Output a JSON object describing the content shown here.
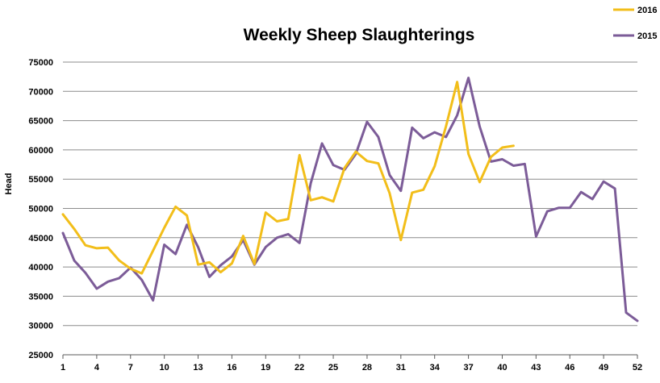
{
  "chart_data": {
    "type": "line",
    "title": "Weekly Sheep Slaughterings",
    "ylabel": "Head",
    "xlabel": "",
    "xlim": [
      1,
      52
    ],
    "ylim": [
      25000,
      75000
    ],
    "y_ticks": [
      25000,
      30000,
      35000,
      40000,
      45000,
      50000,
      55000,
      60000,
      65000,
      70000,
      75000
    ],
    "x_ticks": [
      1,
      4,
      7,
      10,
      13,
      16,
      19,
      22,
      25,
      28,
      31,
      34,
      37,
      40,
      43,
      46,
      49,
      52
    ],
    "grid": "horizontal",
    "legend_position": "top-right",
    "series": [
      {
        "name": "2016",
        "color": "#f2be1a",
        "x": [
          1,
          2,
          3,
          4,
          5,
          6,
          7,
          8,
          9,
          10,
          11,
          12,
          13,
          14,
          15,
          16,
          17,
          18,
          19,
          20,
          21,
          22,
          23,
          24,
          25,
          26,
          27,
          28,
          29,
          30,
          31,
          32,
          33,
          34,
          35,
          36,
          37,
          38,
          39,
          40,
          41
        ],
        "values": [
          49000,
          46500,
          43700,
          43200,
          43300,
          41100,
          39700,
          38900,
          42800,
          46700,
          50300,
          48800,
          40400,
          40800,
          39100,
          40600,
          45300,
          40500,
          49300,
          47800,
          48200,
          59100,
          51400,
          51900,
          51200,
          56900,
          59700,
          58100,
          57700,
          52600,
          44600,
          52700,
          53200,
          57200,
          64000,
          71600,
          59300,
          54500,
          58800,
          60400,
          60700
        ]
      },
      {
        "name": "2015",
        "color": "#7c5c98",
        "x": [
          1,
          2,
          3,
          4,
          5,
          6,
          7,
          8,
          9,
          10,
          11,
          12,
          13,
          14,
          15,
          16,
          17,
          18,
          19,
          20,
          21,
          22,
          23,
          24,
          25,
          26,
          27,
          28,
          29,
          30,
          31,
          32,
          33,
          34,
          35,
          36,
          37,
          38,
          39,
          40,
          41,
          42,
          43,
          44,
          45,
          46,
          47,
          48,
          49,
          50,
          51,
          52
        ],
        "values": [
          45800,
          41100,
          39000,
          36300,
          37500,
          38100,
          39900,
          37800,
          34300,
          43800,
          42200,
          47200,
          43400,
          38300,
          40300,
          41800,
          44600,
          40400,
          43400,
          45000,
          45600,
          44100,
          54300,
          61100,
          57400,
          56600,
          59300,
          64800,
          62200,
          55700,
          53000,
          63800,
          62000,
          63000,
          62200,
          65900,
          72300,
          64000,
          58000,
          58400,
          57300,
          57600,
          45200,
          49500,
          50100,
          50100,
          52800,
          51600,
          54600,
          53400,
          32200,
          30800
        ]
      }
    ]
  }
}
